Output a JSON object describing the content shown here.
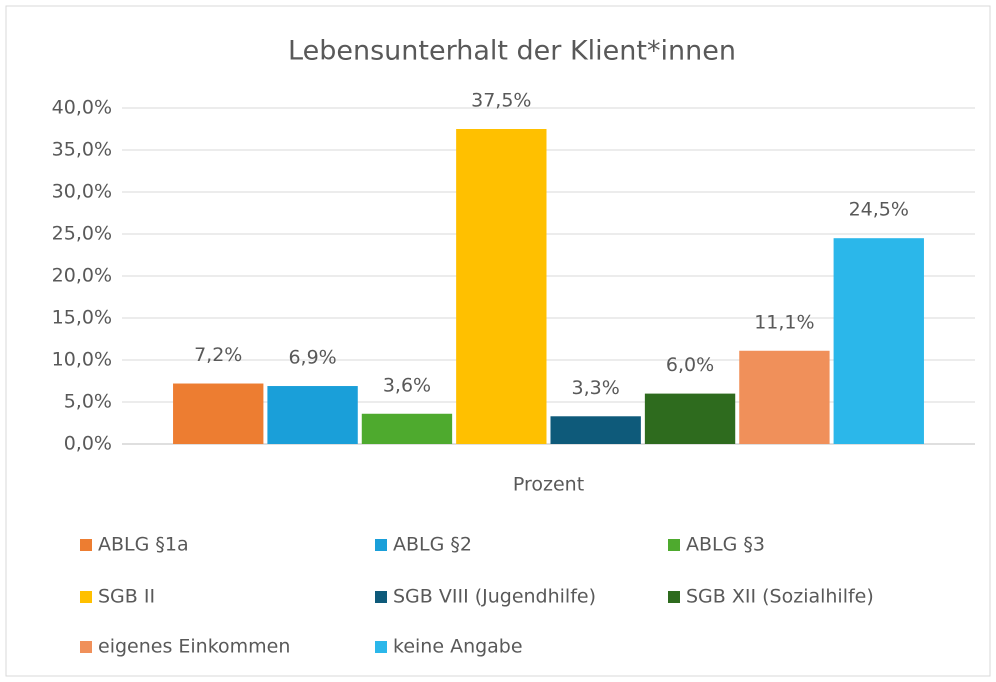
{
  "chart_data": {
    "type": "bar",
    "title": "Lebensunterhalt der Klient*innen",
    "categories": [
      "Prozent"
    ],
    "series": [
      {
        "name": "ABLG §1a",
        "color": "#ED7D31",
        "values": [
          7.2
        ],
        "value_labels": [
          "7,2%"
        ]
      },
      {
        "name": "ABLG §2",
        "color": "#1A9FD9",
        "values": [
          6.9
        ],
        "value_labels": [
          "6,9%"
        ]
      },
      {
        "name": "ABLG §3",
        "color": "#4EAA2E",
        "values": [
          3.6
        ],
        "value_labels": [
          "3,6%"
        ]
      },
      {
        "name": "SGB II",
        "color": "#FFC000",
        "values": [
          37.5
        ],
        "value_labels": [
          "37,5%"
        ]
      },
      {
        "name": "SGB VIII (Jugendhilfe)",
        "color": "#0E5A7A",
        "values": [
          3.3
        ],
        "value_labels": [
          "3,3%"
        ]
      },
      {
        "name": "SGB XII (Sozialhilfe)",
        "color": "#2E6B1E",
        "values": [
          6.0
        ],
        "value_labels": [
          "6,0%"
        ]
      },
      {
        "name": "eigenes Einkommen",
        "color": "#F0905A",
        "values": [
          11.1
        ],
        "value_labels": [
          "11,1%"
        ]
      },
      {
        "name": "keine Angabe",
        "color": "#2BB7EA",
        "values": [
          24.5
        ],
        "value_labels": [
          "24,5%"
        ]
      }
    ],
    "ylim": [
      0,
      40
    ],
    "yticks": [
      {
        "value": 0,
        "label": "0,0%"
      },
      {
        "value": 5,
        "label": "5,0%"
      },
      {
        "value": 10,
        "label": "10,0%"
      },
      {
        "value": 15,
        "label": "15,0%"
      },
      {
        "value": 20,
        "label": "20,0%"
      },
      {
        "value": 25,
        "label": "25,0%"
      },
      {
        "value": 30,
        "label": "30,0%"
      },
      {
        "value": 35,
        "label": "35,0%"
      },
      {
        "value": 40,
        "label": "40,0%"
      }
    ],
    "grid": true,
    "legend": "bottom"
  }
}
